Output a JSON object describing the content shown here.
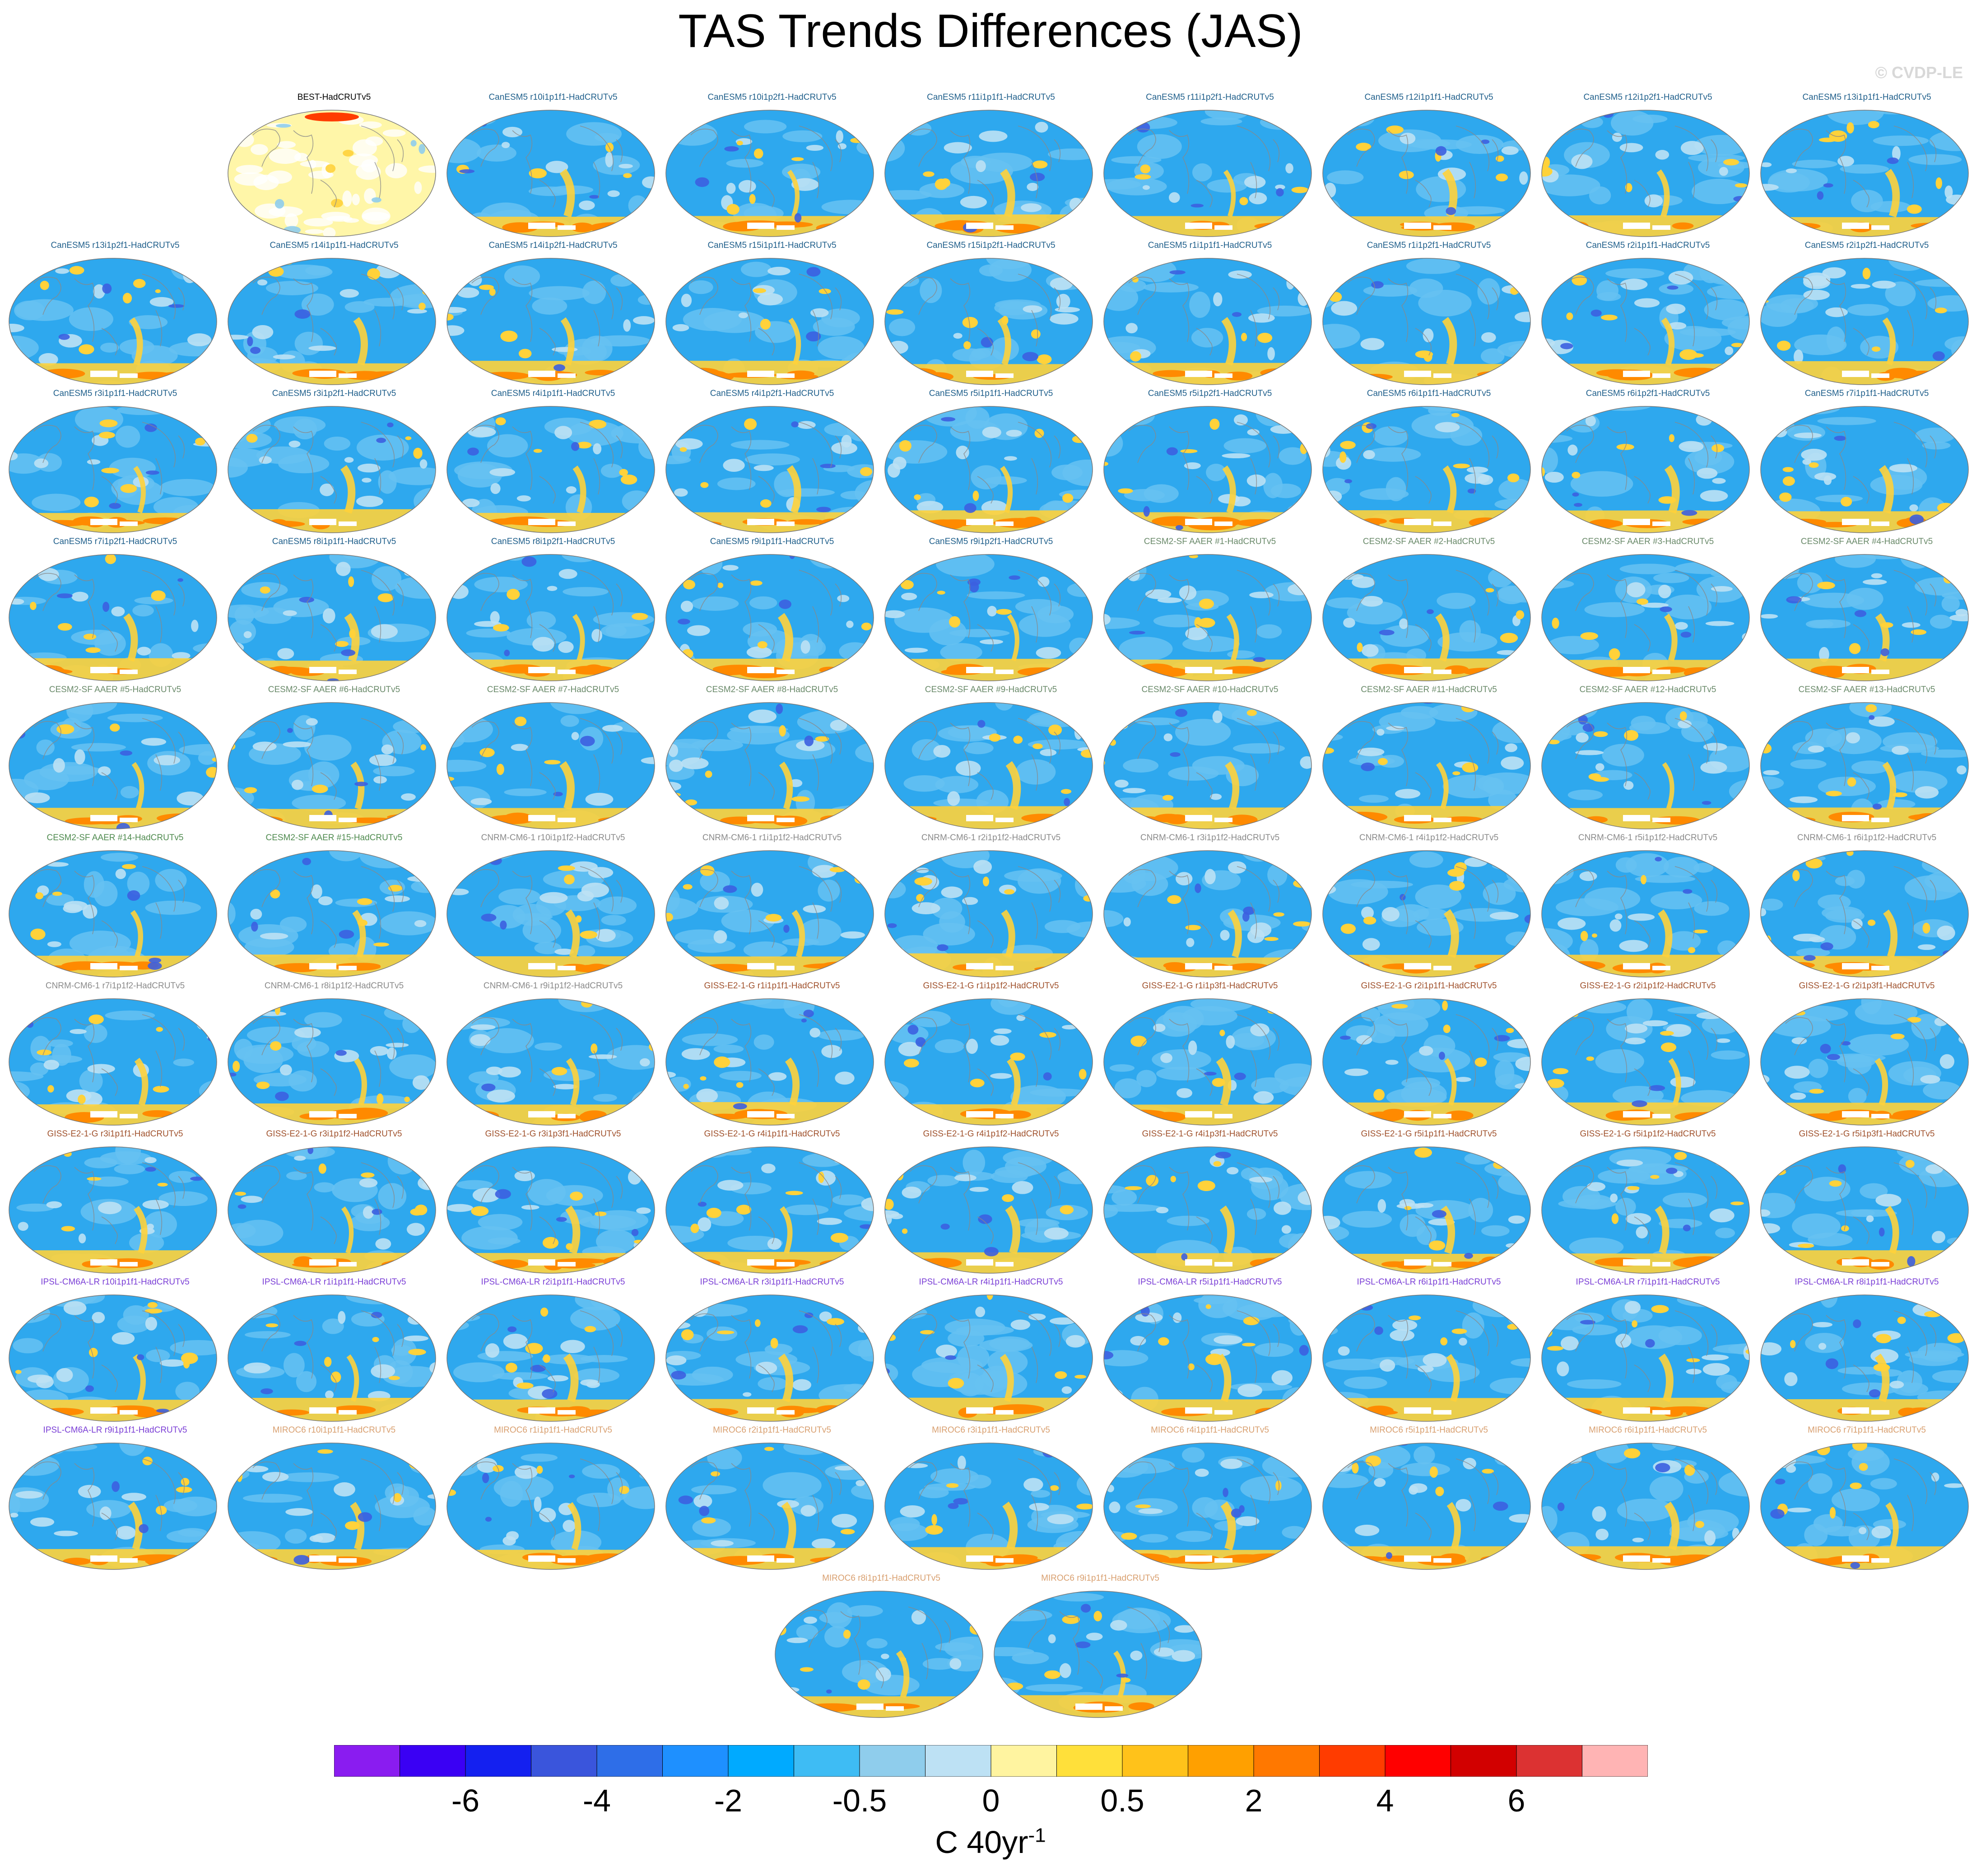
{
  "title": "TAS Trends Differences (JAS)",
  "credit": "© CVDP-LE",
  "colorbar": {
    "colors": [
      "#8a1cf0",
      "#3a00f4",
      "#1420f0",
      "#3a55dc",
      "#2e6ee8",
      "#1e90ff",
      "#00aaff",
      "#3ebcf4",
      "#8fcdec",
      "#bde1f4",
      "#fff4a0",
      "#ffe03a",
      "#ffc21a",
      "#ffa000",
      "#ff7800",
      "#ff3c00",
      "#ff0000",
      "#d20000",
      "#dc3232",
      "#ffb4b4"
    ],
    "tick_labels": [
      "-6",
      "-4",
      "-2",
      "-0.5",
      "0",
      "0.5",
      "2",
      "4",
      "6"
    ],
    "units": "C 40yr",
    "units_exponent": "-1"
  },
  "palette": {
    "land_outline": "#888888",
    "ocean": "#2ea8ee",
    "ocean_light": "#66c2f2",
    "warm": "#ffd23a",
    "hot": "#ff8a00",
    "cold": "#3c5fe0"
  },
  "panels": [
    {
      "label": "BEST-HadCRUTv5",
      "color": "#000000",
      "style": "obs"
    },
    {
      "label": "CanESM5 r10i1p1f1-HadCRUTv5",
      "color": "#1f5f8b"
    },
    {
      "label": "CanESM5 r10i1p2f1-HadCRUTv5",
      "color": "#1f5f8b"
    },
    {
      "label": "CanESM5 r11i1p1f1-HadCRUTv5",
      "color": "#1f5f8b"
    },
    {
      "label": "CanESM5 r11i1p2f1-HadCRUTv5",
      "color": "#1f5f8b"
    },
    {
      "label": "CanESM5 r12i1p1f1-HadCRUTv5",
      "color": "#1f5f8b"
    },
    {
      "label": "CanESM5 r12i1p2f1-HadCRUTv5",
      "color": "#1f5f8b"
    },
    {
      "label": "CanESM5 r13i1p1f1-HadCRUTv5",
      "color": "#1f5f8b"
    },
    {
      "label": "CanESM5 r13i1p2f1-HadCRUTv5",
      "color": "#1f5f8b"
    },
    {
      "label": "CanESM5 r14i1p1f1-HadCRUTv5",
      "color": "#1f5f8b"
    },
    {
      "label": "CanESM5 r14i1p2f1-HadCRUTv5",
      "color": "#1f5f8b"
    },
    {
      "label": "CanESM5 r15i1p1f1-HadCRUTv5",
      "color": "#1f5f8b"
    },
    {
      "label": "CanESM5 r15i1p2f1-HadCRUTv5",
      "color": "#1f5f8b"
    },
    {
      "label": "CanESM5 r1i1p1f1-HadCRUTv5",
      "color": "#1f5f8b"
    },
    {
      "label": "CanESM5 r1i1p2f1-HadCRUTv5",
      "color": "#1f5f8b"
    },
    {
      "label": "CanESM5 r2i1p1f1-HadCRUTv5",
      "color": "#1f5f8b"
    },
    {
      "label": "CanESM5 r2i1p2f1-HadCRUTv5",
      "color": "#1f5f8b"
    },
    {
      "label": "CanESM5 r3i1p1f1-HadCRUTv5",
      "color": "#1f5f8b"
    },
    {
      "label": "CanESM5 r3i1p2f1-HadCRUTv5",
      "color": "#1f5f8b"
    },
    {
      "label": "CanESM5 r4i1p1f1-HadCRUTv5",
      "color": "#1f5f8b"
    },
    {
      "label": "CanESM5 r4i1p2f1-HadCRUTv5",
      "color": "#1f5f8b"
    },
    {
      "label": "CanESM5 r5i1p1f1-HadCRUTv5",
      "color": "#1f5f8b"
    },
    {
      "label": "CanESM5 r5i1p2f1-HadCRUTv5",
      "color": "#1f5f8b"
    },
    {
      "label": "CanESM5 r6i1p1f1-HadCRUTv5",
      "color": "#1f5f8b"
    },
    {
      "label": "CanESM5 r6i1p2f1-HadCRUTv5",
      "color": "#1f5f8b"
    },
    {
      "label": "CanESM5 r7i1p1f1-HadCRUTv5",
      "color": "#1f5f8b"
    },
    {
      "label": "CanESM5 r7i1p2f1-HadCRUTv5",
      "color": "#1f5f8b"
    },
    {
      "label": "CanESM5 r8i1p1f1-HadCRUTv5",
      "color": "#1f5f8b"
    },
    {
      "label": "CanESM5 r8i1p2f1-HadCRUTv5",
      "color": "#1f5f8b"
    },
    {
      "label": "CanESM5 r9i1p1f1-HadCRUTv5",
      "color": "#1f5f8b"
    },
    {
      "label": "CanESM5 r9i1p2f1-HadCRUTv5",
      "color": "#1f5f8b"
    },
    {
      "label": "CESM2-SF AAER #1-HadCRUTv5",
      "color": "#6a8a6a"
    },
    {
      "label": "CESM2-SF AAER #2-HadCRUTv5",
      "color": "#6a8a6a"
    },
    {
      "label": "CESM2-SF AAER #3-HadCRUTv5",
      "color": "#6a8a6a"
    },
    {
      "label": "CESM2-SF AAER #4-HadCRUTv5",
      "color": "#6a8a6a"
    },
    {
      "label": "CESM2-SF AAER #5-HadCRUTv5",
      "color": "#6a8a6a"
    },
    {
      "label": "CESM2-SF AAER #6-HadCRUTv5",
      "color": "#6a8a6a"
    },
    {
      "label": "CESM2-SF AAER #7-HadCRUTv5",
      "color": "#6a8a6a"
    },
    {
      "label": "CESM2-SF AAER #8-HadCRUTv5",
      "color": "#6a8a6a"
    },
    {
      "label": "CESM2-SF AAER #9-HadCRUTv5",
      "color": "#6a8a6a"
    },
    {
      "label": "CESM2-SF AAER #10-HadCRUTv5",
      "color": "#6a8a6a"
    },
    {
      "label": "CESM2-SF AAER #11-HadCRUTv5",
      "color": "#6a8a6a"
    },
    {
      "label": "CESM2-SF AAER #12-HadCRUTv5",
      "color": "#6a8a6a"
    },
    {
      "label": "CESM2-SF AAER #13-HadCRUTv5",
      "color": "#6a8a6a"
    },
    {
      "label": "CESM2-SF AAER #14-HadCRUTv5",
      "color": "#4e8a4e"
    },
    {
      "label": "CESM2-SF AAER #15-HadCRUTv5",
      "color": "#4e8a4e"
    },
    {
      "label": "CNRM-CM6-1 r10i1p1f2-HadCRUTv5",
      "color": "#8a8a8a"
    },
    {
      "label": "CNRM-CM6-1 r1i1p1f2-HadCRUTv5",
      "color": "#8a8a8a"
    },
    {
      "label": "CNRM-CM6-1 r2i1p1f2-HadCRUTv5",
      "color": "#8a8a8a"
    },
    {
      "label": "CNRM-CM6-1 r3i1p1f2-HadCRUTv5",
      "color": "#8a8a8a"
    },
    {
      "label": "CNRM-CM6-1 r4i1p1f2-HadCRUTv5",
      "color": "#8a8a8a"
    },
    {
      "label": "CNRM-CM6-1 r5i1p1f2-HadCRUTv5",
      "color": "#8a8a8a"
    },
    {
      "label": "CNRM-CM6-1 r6i1p1f2-HadCRUTv5",
      "color": "#8a8a8a"
    },
    {
      "label": "CNRM-CM6-1 r7i1p1f2-HadCRUTv5",
      "color": "#8a8a8a"
    },
    {
      "label": "CNRM-CM6-1 r8i1p1f2-HadCRUTv5",
      "color": "#8a8a8a"
    },
    {
      "label": "CNRM-CM6-1 r9i1p1f2-HadCRUTv5",
      "color": "#8a8a8a"
    },
    {
      "label": "GISS-E2-1-G r1i1p1f1-HadCRUTv5",
      "color": "#a0522d"
    },
    {
      "label": "GISS-E2-1-G r1i1p1f2-HadCRUTv5",
      "color": "#a0522d"
    },
    {
      "label": "GISS-E2-1-G r1i1p3f1-HadCRUTv5",
      "color": "#a0522d"
    },
    {
      "label": "GISS-E2-1-G r2i1p1f1-HadCRUTv5",
      "color": "#a0522d"
    },
    {
      "label": "GISS-E2-1-G r2i1p1f2-HadCRUTv5",
      "color": "#a0522d"
    },
    {
      "label": "GISS-E2-1-G r2i1p3f1-HadCRUTv5",
      "color": "#a0522d"
    },
    {
      "label": "GISS-E2-1-G r3i1p1f1-HadCRUTv5",
      "color": "#a0522d"
    },
    {
      "label": "GISS-E2-1-G r3i1p1f2-HadCRUTv5",
      "color": "#a0522d"
    },
    {
      "label": "GISS-E2-1-G r3i1p3f1-HadCRUTv5",
      "color": "#a0522d"
    },
    {
      "label": "GISS-E2-1-G r4i1p1f1-HadCRUTv5",
      "color": "#a0522d"
    },
    {
      "label": "GISS-E2-1-G r4i1p1f2-HadCRUTv5",
      "color": "#a0522d"
    },
    {
      "label": "GISS-E2-1-G r4i1p3f1-HadCRUTv5",
      "color": "#a0522d"
    },
    {
      "label": "GISS-E2-1-G r5i1p1f1-HadCRUTv5",
      "color": "#a0522d"
    },
    {
      "label": "GISS-E2-1-G r5i1p1f2-HadCRUTv5",
      "color": "#a0522d"
    },
    {
      "label": "GISS-E2-1-G r5i1p3f1-HadCRUTv5",
      "color": "#a0522d"
    },
    {
      "label": "IPSL-CM6A-LR r10i1p1f1-HadCRUTv5",
      "color": "#7b3fd6"
    },
    {
      "label": "IPSL-CM6A-LR r1i1p1f1-HadCRUTv5",
      "color": "#7b3fd6"
    },
    {
      "label": "IPSL-CM6A-LR r2i1p1f1-HadCRUTv5",
      "color": "#7b3fd6"
    },
    {
      "label": "IPSL-CM6A-LR r3i1p1f1-HadCRUTv5",
      "color": "#7b3fd6"
    },
    {
      "label": "IPSL-CM6A-LR r4i1p1f1-HadCRUTv5",
      "color": "#7b3fd6"
    },
    {
      "label": "IPSL-CM6A-LR r5i1p1f1-HadCRUTv5",
      "color": "#7b3fd6"
    },
    {
      "label": "IPSL-CM6A-LR r6i1p1f1-HadCRUTv5",
      "color": "#7b3fd6"
    },
    {
      "label": "IPSL-CM6A-LR r7i1p1f1-HadCRUTv5",
      "color": "#7b3fd6"
    },
    {
      "label": "IPSL-CM6A-LR r8i1p1f1-HadCRUTv5",
      "color": "#7b3fd6"
    },
    {
      "label": "IPSL-CM6A-LR r9i1p1f1-HadCRUTv5",
      "color": "#7b3fd6"
    },
    {
      "label": "MIROC6 r10i1p1f1-HadCRUTv5",
      "color": "#d9a070"
    },
    {
      "label": "MIROC6 r1i1p1f1-HadCRUTv5",
      "color": "#d9a070"
    },
    {
      "label": "MIROC6 r2i1p1f1-HadCRUTv5",
      "color": "#d9a070"
    },
    {
      "label": "MIROC6 r3i1p1f1-HadCRUTv5",
      "color": "#d9a070"
    },
    {
      "label": "MIROC6 r4i1p1f1-HadCRUTv5",
      "color": "#d9a070"
    },
    {
      "label": "MIROC6 r5i1p1f1-HadCRUTv5",
      "color": "#d9a070"
    },
    {
      "label": "MIROC6 r6i1p1f1-HadCRUTv5",
      "color": "#d9a070"
    },
    {
      "label": "MIROC6 r7i1p1f1-HadCRUTv5",
      "color": "#d9a070"
    },
    {
      "label": "MIROC6 r8i1p1f1-HadCRUTv5",
      "color": "#d9a070"
    },
    {
      "label": "MIROC6 r9i1p1f1-HadCRUTv5",
      "color": "#d9a070"
    }
  ]
}
